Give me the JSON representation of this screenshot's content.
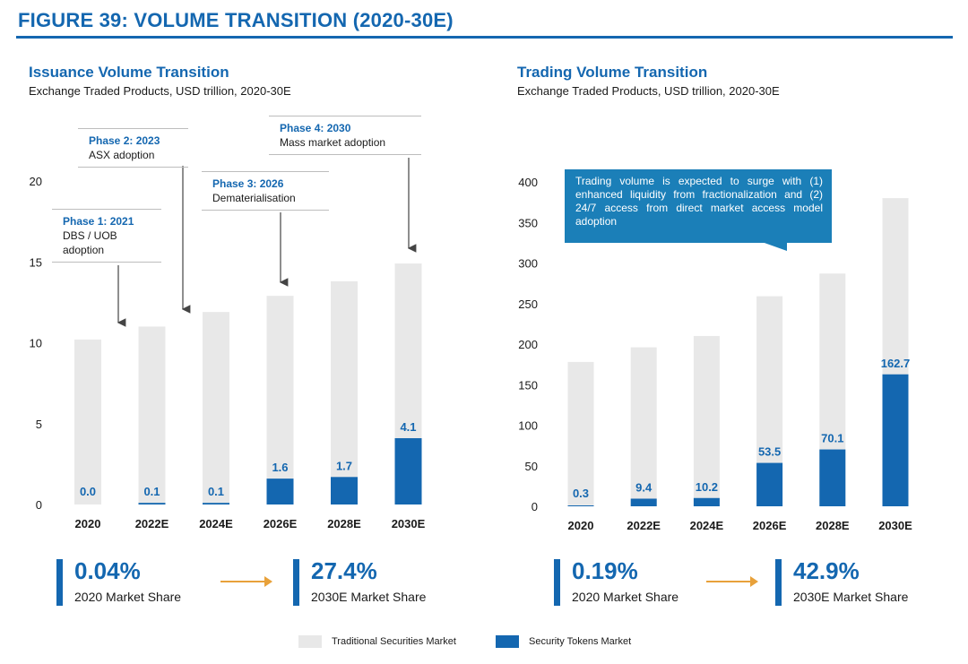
{
  "figure_title": "FIGURE 39: VOLUME TRANSITION (2020-30E)",
  "colors": {
    "brand_blue": "#1467b0",
    "traditional_grey": "#e8e8e8",
    "token_blue": "#1467b0",
    "callout_blue": "#1b7fb8",
    "arrow_orange": "#e8a13a"
  },
  "chart_data": [
    {
      "type": "bar",
      "stacked": "overlay",
      "title": "Issuance Volume Transition",
      "subtitle": "Exchange Traded Products, USD trillion, 2020-30E",
      "categories": [
        "2020",
        "2022E",
        "2024E",
        "2026E",
        "2028E",
        "2030E"
      ],
      "series": [
        {
          "name": "Traditional Securities Market",
          "values": [
            10.2,
            11.0,
            11.9,
            12.9,
            13.8,
            14.9
          ]
        },
        {
          "name": "Security Tokens Market",
          "values": [
            0.0,
            0.1,
            0.1,
            1.6,
            1.7,
            4.1
          ]
        }
      ],
      "data_labels": [
        "0.0",
        "0.1",
        "0.1",
        "1.6",
        "1.7",
        "4.1"
      ],
      "yticks": [
        "0",
        "5",
        "10",
        "15",
        "20"
      ],
      "ylim": [
        0,
        20
      ],
      "annotations": [
        {
          "phase": "Phase 1: 2021",
          "text": "DBS / UOB adoption",
          "line1": "DBS / UOB",
          "line2": "adoption"
        },
        {
          "phase": "Phase 2: 2023",
          "text": "ASX adoption"
        },
        {
          "phase": "Phase 3: 2026",
          "text": "Dematerialisation"
        },
        {
          "phase": "Phase 4: 2030",
          "text": "Mass market adoption"
        }
      ]
    },
    {
      "type": "bar",
      "stacked": "overlay",
      "title": "Trading Volume Transition",
      "subtitle": "Exchange Traded Products, USD trillion, 2020-30E",
      "categories": [
        "2020",
        "2022E",
        "2024E",
        "2026E",
        "2028E",
        "2030E"
      ],
      "series": [
        {
          "name": "Traditional Securities Market",
          "values": [
            178,
            196,
            210,
            259,
            287,
            380
          ]
        },
        {
          "name": "Security Tokens Market",
          "values": [
            0.3,
            9.4,
            10.2,
            53.5,
            70.1,
            162.7
          ]
        }
      ],
      "data_labels": [
        "0.3",
        "9.4",
        "10.2",
        "53.5",
        "70.1",
        "162.7"
      ],
      "yticks": [
        "0",
        "50",
        "100",
        "150",
        "200",
        "250",
        "300",
        "350",
        "400"
      ],
      "ylim": [
        0,
        400
      ],
      "callout": "Trading volume is expected to surge with (1) enhanced liquidity from fractionalization and (2) 24/7 access from direct market access model adoption"
    }
  ],
  "market_share": {
    "issuance": {
      "start_value": "0.04%",
      "start_label": "2020 Market Share",
      "end_value": "27.4%",
      "end_label": "2030E Market Share"
    },
    "trading": {
      "start_value": "0.19%",
      "start_label": "2020 Market Share",
      "end_value": "42.9%",
      "end_label": "2030E Market Share"
    }
  },
  "legend": [
    {
      "label": "Traditional Securities Market",
      "color": "#e8e8e8"
    },
    {
      "label": "Security Tokens Market",
      "color": "#1467b0"
    }
  ]
}
